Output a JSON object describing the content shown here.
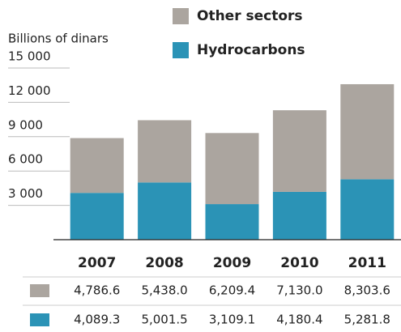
{
  "chart_data": {
    "type": "bar",
    "stacked": true,
    "y_label": "Billions of dinars",
    "categories": [
      "2007",
      "2008",
      "2009",
      "2010",
      "2011"
    ],
    "series": [
      {
        "name": "Other sectors",
        "color": "#aba59f",
        "values": [
          4786.6,
          5438.0,
          6209.4,
          7130.0,
          8303.6
        ],
        "value_labels": [
          "4,786.6",
          "5,438.0",
          "6,209.4",
          "7,130.0",
          "8,303.6"
        ]
      },
      {
        "name": "Hydrocarbons",
        "color": "#2b93b6",
        "values": [
          4089.3,
          5001.5,
          3109.1,
          4180.4,
          5281.8
        ],
        "value_labels": [
          "4,089.3",
          "5,001.5",
          "3,109.1",
          "4,180.4",
          "5,281.8"
        ]
      }
    ],
    "ylim": [
      0,
      15000
    ],
    "yticks": [
      {
        "value": 3000,
        "label": "3 000"
      },
      {
        "value": 6000,
        "label": "6 000"
      },
      {
        "value": 9000,
        "label": "9 000"
      },
      {
        "value": 12000,
        "label": "12 000"
      },
      {
        "value": 15000,
        "label": "15 000"
      }
    ],
    "grid": true
  }
}
